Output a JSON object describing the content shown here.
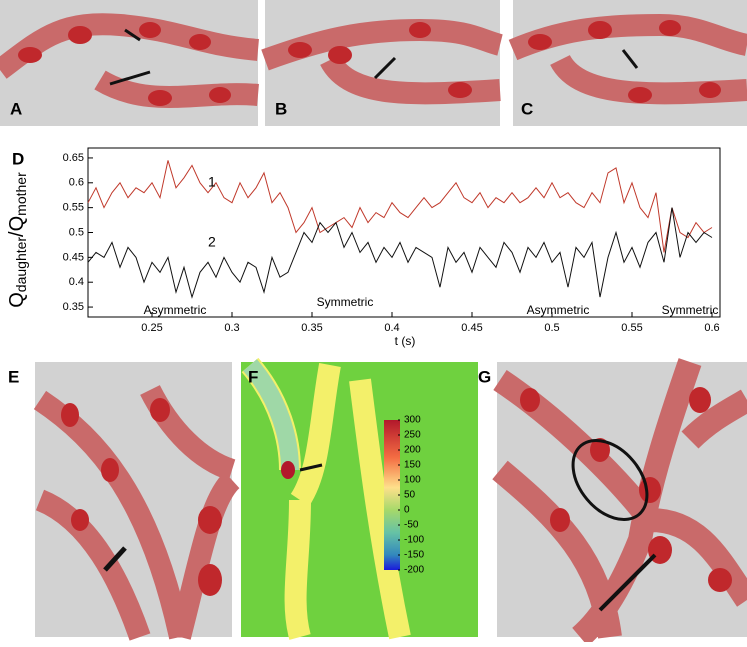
{
  "chart_data": {
    "type": "line",
    "panel": "D",
    "ylabel": {
      "q1": "Q",
      "sub1": "daughter",
      "slash": "/Q",
      "sub2": "mother"
    },
    "xlabel": "t (s)",
    "x": [
      0.21,
      0.215,
      0.22,
      0.225,
      0.23,
      0.235,
      0.24,
      0.245,
      0.25,
      0.255,
      0.26,
      0.265,
      0.27,
      0.275,
      0.28,
      0.285,
      0.29,
      0.295,
      0.3,
      0.305,
      0.31,
      0.315,
      0.32,
      0.325,
      0.33,
      0.335,
      0.34,
      0.345,
      0.35,
      0.355,
      0.36,
      0.365,
      0.37,
      0.375,
      0.38,
      0.385,
      0.39,
      0.395,
      0.4,
      0.405,
      0.41,
      0.415,
      0.42,
      0.425,
      0.43,
      0.435,
      0.44,
      0.445,
      0.45,
      0.455,
      0.46,
      0.465,
      0.47,
      0.475,
      0.48,
      0.485,
      0.49,
      0.495,
      0.5,
      0.505,
      0.51,
      0.515,
      0.52,
      0.525,
      0.53,
      0.535,
      0.54,
      0.545,
      0.55,
      0.555,
      0.56,
      0.565,
      0.57,
      0.575,
      0.58,
      0.585,
      0.59,
      0.595,
      0.6
    ],
    "series": [
      {
        "name": "1",
        "color": "#c0392b",
        "values": [
          0.56,
          0.59,
          0.55,
          0.58,
          0.6,
          0.57,
          0.59,
          0.58,
          0.6,
          0.57,
          0.645,
          0.59,
          0.61,
          0.635,
          0.6,
          0.58,
          0.6,
          0.57,
          0.56,
          0.6,
          0.57,
          0.59,
          0.62,
          0.56,
          0.58,
          0.55,
          0.5,
          0.52,
          0.55,
          0.5,
          0.51,
          0.52,
          0.53,
          0.51,
          0.55,
          0.52,
          0.54,
          0.53,
          0.56,
          0.54,
          0.53,
          0.55,
          0.57,
          0.55,
          0.56,
          0.58,
          0.6,
          0.57,
          0.56,
          0.58,
          0.55,
          0.57,
          0.56,
          0.58,
          0.56,
          0.57,
          0.59,
          0.57,
          0.6,
          0.57,
          0.58,
          0.56,
          0.55,
          0.58,
          0.56,
          0.62,
          0.63,
          0.56,
          0.6,
          0.55,
          0.53,
          0.58,
          0.46,
          0.55,
          0.5,
          0.49,
          0.52,
          0.5,
          0.51
        ]
      },
      {
        "name": "2",
        "color": "#111111",
        "values": [
          0.44,
          0.46,
          0.45,
          0.48,
          0.43,
          0.47,
          0.45,
          0.4,
          0.44,
          0.42,
          0.45,
          0.38,
          0.43,
          0.37,
          0.42,
          0.44,
          0.41,
          0.45,
          0.42,
          0.4,
          0.44,
          0.43,
          0.38,
          0.45,
          0.41,
          0.42,
          0.46,
          0.5,
          0.48,
          0.52,
          0.5,
          0.52,
          0.47,
          0.5,
          0.46,
          0.48,
          0.44,
          0.47,
          0.45,
          0.48,
          0.44,
          0.47,
          0.46,
          0.45,
          0.39,
          0.47,
          0.44,
          0.46,
          0.42,
          0.47,
          0.45,
          0.43,
          0.48,
          0.46,
          0.42,
          0.47,
          0.45,
          0.48,
          0.44,
          0.46,
          0.39,
          0.47,
          0.45,
          0.48,
          0.37,
          0.45,
          0.5,
          0.44,
          0.47,
          0.43,
          0.48,
          0.5,
          0.44,
          0.55,
          0.45,
          0.5,
          0.48,
          0.5,
          0.49
        ]
      }
    ],
    "annotations": [
      "Asymmetric",
      "Symmetric",
      "Asymmetric",
      "Symmetric"
    ],
    "xlim": [
      0.21,
      0.605
    ],
    "xticks": [
      0.25,
      0.3,
      0.35,
      0.4,
      0.45,
      0.5,
      0.55,
      0.6
    ],
    "ylim": [
      0.33,
      0.67
    ],
    "yticks": [
      0.35,
      0.4,
      0.45,
      0.5,
      0.55,
      0.6,
      0.65
    ]
  },
  "panel_labels": [
    "A",
    "B",
    "C",
    "E",
    "F",
    "G"
  ],
  "colorbar": {
    "ticks": [
      300,
      250,
      200,
      150,
      100,
      50,
      0,
      -50,
      -100,
      -150,
      -200
    ]
  }
}
